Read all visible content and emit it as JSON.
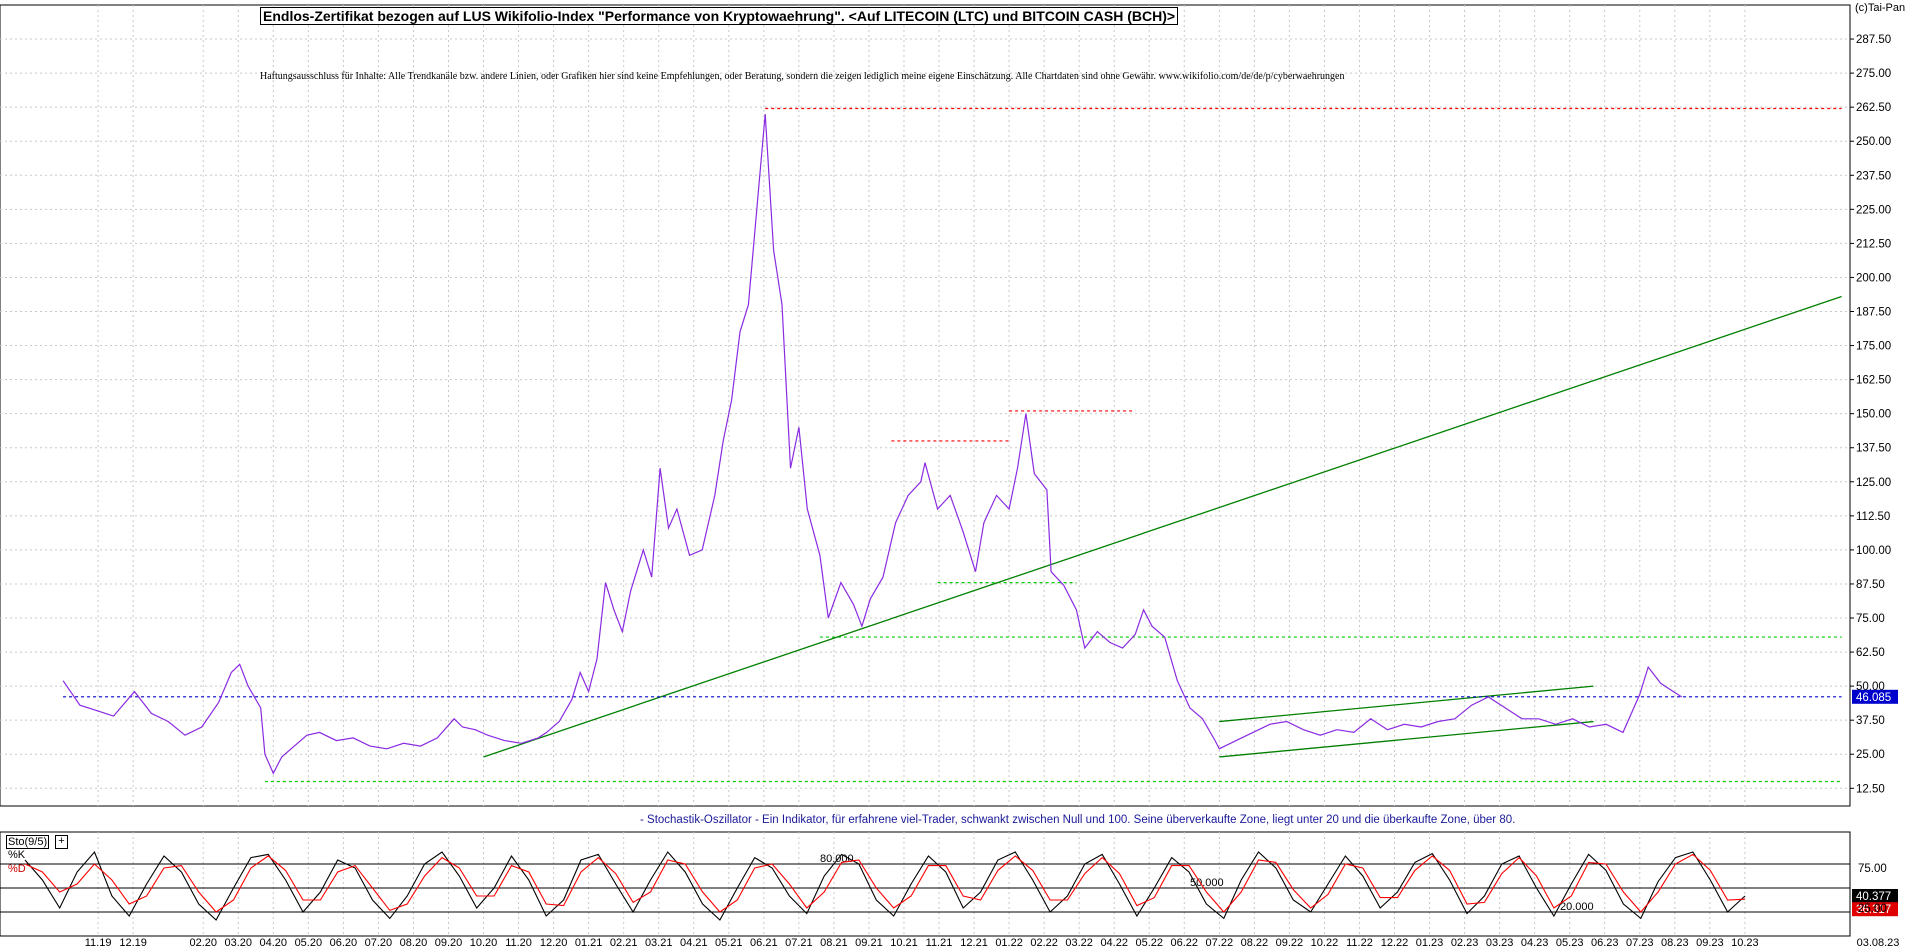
{
  "header": {
    "title": "Endlos-Zertifikat bezogen auf LUS Wikifolio-Index \"Performance von Kryptowaehrung\". <Auf LITECOIN (LTC) und BITCOIN CASH (BCH)>",
    "disclaimer": "Haftungsausschluss für Inhalte: Alle Trendkanäle bzw. andere Linien, oder Grafiken hier sind keine Empfehlungen, oder Beratung, sondern die zeigen lediglich meine eigene Einschätzung. Alle Chartdaten sind ohne Gewähr. www.wikifolio.com/de/de/p/cyberwaehrungen",
    "copyright": "(c)Tai-Pan"
  },
  "oscillator": {
    "label": "Sto(9/5)",
    "k_label": "%K",
    "d_label": "%D",
    "note": "- Stochastik-Oszillator - Ein Indikator, für erfahrene viel-Trader, schwankt zwischen Null und 100. Seine überverkaufte Zone, liegt unter 20 und die überkaufte Zone, über 80.",
    "level_labels": [
      "80.000",
      "50.000",
      "20.000"
    ],
    "k_value": "40.377",
    "d_value": "36.317"
  },
  "colors": {
    "price": "#8a2be2",
    "trend": "#008000",
    "resistance": "#ff0000",
    "support": "#00cc00",
    "current": "#0000cc",
    "k_line": "#000000",
    "d_line": "#ff0000"
  },
  "chart_data": [
    {
      "type": "line",
      "x_axis": {
        "tick_labels": [
          "11.19",
          "12.19",
          "02.20",
          "03.20",
          "04.20",
          "05.20",
          "06.20",
          "07.20",
          "08.20",
          "09.20",
          "10.20",
          "11.20",
          "12.20",
          "01.21",
          "02.21",
          "03.21",
          "04.21",
          "05.21",
          "06.21",
          "07.21",
          "08.21",
          "09.21",
          "10.21",
          "11.21",
          "12.21",
          "01.22",
          "02.22",
          "03.22",
          "04.22",
          "05.22",
          "06.22",
          "07.22",
          "08.22",
          "09.22",
          "10.22",
          "11.22",
          "12.22",
          "01.23",
          "02.23",
          "03.23",
          "04.23",
          "05.23",
          "06.23",
          "07.23",
          "08.23",
          "09.23",
          "10.23",
          "03.08.23"
        ],
        "range": [
          "2019-10",
          "2023-12"
        ]
      },
      "y_axis": {
        "tick_labels": [
          "12.50",
          "25.00",
          "37.50",
          "50.00",
          "62.50",
          "75.00",
          "87.50",
          "100.00",
          "112.50",
          "125.00",
          "137.50",
          "150.00",
          "162.50",
          "175.00",
          "187.50",
          "200.00",
          "212.50",
          "225.00",
          "237.50",
          "250.00",
          "262.50",
          "275.00",
          "287.50"
        ],
        "ylim": [
          6,
          300
        ]
      },
      "grid": true,
      "current_value_label": "46.085",
      "current_value": 46.085,
      "series": [
        {
          "points": [
            [
              2019.75,
              52
            ],
            [
              2019.79,
              43
            ],
            [
              2019.83,
              41
            ],
            [
              2019.87,
              39
            ],
            [
              2019.92,
              48
            ],
            [
              2019.96,
              40
            ],
            [
              2020.0,
              37
            ],
            [
              2020.04,
              32
            ],
            [
              2020.08,
              35
            ],
            [
              2020.12,
              44
            ],
            [
              2020.15,
              55
            ],
            [
              2020.17,
              58
            ],
            [
              2020.19,
              50
            ],
            [
              2020.22,
              42
            ],
            [
              2020.23,
              25
            ],
            [
              2020.25,
              18
            ],
            [
              2020.27,
              24
            ],
            [
              2020.3,
              28
            ],
            [
              2020.33,
              32
            ],
            [
              2020.36,
              33
            ],
            [
              2020.4,
              30
            ],
            [
              2020.44,
              31
            ],
            [
              2020.48,
              28
            ],
            [
              2020.52,
              27
            ],
            [
              2020.56,
              29
            ],
            [
              2020.6,
              28
            ],
            [
              2020.64,
              31
            ],
            [
              2020.68,
              38
            ],
            [
              2020.7,
              35
            ],
            [
              2020.73,
              34
            ],
            [
              2020.76,
              32
            ],
            [
              2020.8,
              30
            ],
            [
              2020.84,
              29
            ],
            [
              2020.88,
              31
            ],
            [
              2020.9,
              33
            ],
            [
              2020.93,
              37
            ],
            [
              2020.96,
              45
            ],
            [
              2020.98,
              55
            ],
            [
              2021.0,
              48
            ],
            [
              2021.02,
              60
            ],
            [
              2021.04,
              88
            ],
            [
              2021.06,
              78
            ],
            [
              2021.08,
              70
            ],
            [
              2021.1,
              85
            ],
            [
              2021.13,
              100
            ],
            [
              2021.15,
              90
            ],
            [
              2021.17,
              130
            ],
            [
              2021.19,
              108
            ],
            [
              2021.21,
              115
            ],
            [
              2021.24,
              98
            ],
            [
              2021.27,
              100
            ],
            [
              2021.3,
              120
            ],
            [
              2021.32,
              140
            ],
            [
              2021.34,
              155
            ],
            [
              2021.36,
              180
            ],
            [
              2021.38,
              190
            ],
            [
              2021.4,
              225
            ],
            [
              2021.42,
              260
            ],
            [
              2021.44,
              210
            ],
            [
              2021.46,
              190
            ],
            [
              2021.48,
              130
            ],
            [
              2021.5,
              145
            ],
            [
              2021.52,
              115
            ],
            [
              2021.55,
              98
            ],
            [
              2021.57,
              75
            ],
            [
              2021.6,
              88
            ],
            [
              2021.63,
              80
            ],
            [
              2021.65,
              72
            ],
            [
              2021.67,
              82
            ],
            [
              2021.7,
              90
            ],
            [
              2021.73,
              110
            ],
            [
              2021.76,
              120
            ],
            [
              2021.79,
              125
            ],
            [
              2021.8,
              132
            ],
            [
              2021.83,
              115
            ],
            [
              2021.86,
              120
            ],
            [
              2021.89,
              107
            ],
            [
              2021.92,
              92
            ],
            [
              2021.94,
              110
            ],
            [
              2021.97,
              120
            ],
            [
              2022.0,
              115
            ],
            [
              2022.02,
              130
            ],
            [
              2022.04,
              150
            ],
            [
              2022.06,
              128
            ],
            [
              2022.09,
              122
            ],
            [
              2022.1,
              92
            ],
            [
              2022.13,
              87
            ],
            [
              2022.16,
              78
            ],
            [
              2022.18,
              64
            ],
            [
              2022.21,
              70
            ],
            [
              2022.24,
              66
            ],
            [
              2022.27,
              64
            ],
            [
              2022.3,
              69
            ],
            [
              2022.32,
              78
            ],
            [
              2022.34,
              72
            ],
            [
              2022.37,
              68
            ],
            [
              2022.4,
              52
            ],
            [
              2022.43,
              42
            ],
            [
              2022.46,
              38
            ],
            [
              2022.49,
              30
            ],
            [
              2022.5,
              27
            ],
            [
              2022.54,
              30
            ],
            [
              2022.58,
              33
            ],
            [
              2022.62,
              36
            ],
            [
              2022.66,
              37
            ],
            [
              2022.7,
              34
            ],
            [
              2022.74,
              32
            ],
            [
              2022.78,
              34
            ],
            [
              2022.82,
              33
            ],
            [
              2022.86,
              38
            ],
            [
              2022.9,
              34
            ],
            [
              2022.94,
              36
            ],
            [
              2022.98,
              35
            ],
            [
              2023.02,
              37
            ],
            [
              2023.06,
              38
            ],
            [
              2023.1,
              43
            ],
            [
              2023.14,
              46
            ],
            [
              2023.18,
              42
            ],
            [
              2023.22,
              38
            ],
            [
              2023.26,
              38
            ],
            [
              2023.3,
              36
            ],
            [
              2023.34,
              38
            ],
            [
              2023.38,
              35
            ],
            [
              2023.42,
              36
            ],
            [
              2023.46,
              33
            ],
            [
              2023.5,
              47
            ],
            [
              2023.52,
              57
            ],
            [
              2023.55,
              51
            ],
            [
              2023.58,
              48
            ],
            [
              2023.6,
              46
            ]
          ]
        }
      ],
      "annotations": [
        {
          "kind": "resistance",
          "y": 262,
          "x": [
            2021.42,
            2023.98
          ]
        },
        {
          "kind": "resistance",
          "y": 140,
          "x": [
            2021.72,
            2022.0
          ]
        },
        {
          "kind": "resistance",
          "y": 151,
          "x": [
            2022.0,
            2022.3
          ]
        },
        {
          "kind": "support",
          "y": 88,
          "x": [
            2021.83,
            2022.16
          ]
        },
        {
          "kind": "support",
          "y": 68,
          "x": [
            2021.55,
            2023.98
          ]
        },
        {
          "kind": "support",
          "y": 15,
          "x": [
            2020.23,
            2023.98
          ]
        },
        {
          "kind": "trend",
          "from": [
            2020.75,
            24
          ],
          "to": [
            2023.98,
            193
          ]
        },
        {
          "kind": "trend",
          "from": [
            2022.5,
            37
          ],
          "to": [
            2023.39,
            50
          ]
        },
        {
          "kind": "trend",
          "from": [
            2022.5,
            24
          ],
          "to": [
            2023.39,
            37
          ]
        },
        {
          "kind": "current",
          "y": 46.085,
          "x": [
            2019.75,
            2023.98
          ]
        }
      ]
    },
    {
      "type": "line",
      "ylim": [
        0,
        100
      ],
      "levels": [
        80,
        50,
        20
      ],
      "series": [
        {
          "name": "%K",
          "values": [
            85,
            60,
            25,
            70,
            95,
            40,
            15,
            55,
            90,
            70,
            30,
            10,
            50,
            88,
            92,
            60,
            20,
            45,
            85,
            75,
            35,
            12,
            40,
            80,
            95,
            65,
            25,
            50,
            90,
            60,
            15,
            35,
            85,
            92,
            55,
            20,
            60,
            95,
            70,
            30,
            10,
            50,
            88,
            75,
            40,
            18,
            65,
            92,
            80,
            35,
            15,
            55,
            90,
            70,
            25,
            45,
            85,
            95,
            60,
            20,
            40,
            80,
            92,
            55,
            15,
            50,
            88,
            70,
            30,
            12,
            60,
            95,
            75,
            35,
            20,
            55,
            90,
            65,
            25,
            45,
            82,
            93,
            60,
            18,
            40,
            80,
            90,
            50,
            15,
            55,
            92,
            72,
            30,
            12,
            58,
            88,
            95,
            60,
            20,
            40
          ]
        },
        {
          "name": "%D",
          "values": [
            80,
            70,
            45,
            55,
            80,
            60,
            30,
            40,
            75,
            78,
            45,
            20,
            35,
            75,
            90,
            72,
            35,
            35,
            70,
            78,
            50,
            22,
            30,
            65,
            88,
            75,
            40,
            40,
            78,
            70,
            30,
            28,
            70,
            88,
            68,
            32,
            45,
            85,
            80,
            45,
            20,
            35,
            75,
            80,
            55,
            25,
            45,
            82,
            85,
            50,
            25,
            40,
            78,
            78,
            40,
            35,
            72,
            90,
            72,
            35,
            35,
            68,
            88,
            68,
            28,
            38,
            78,
            78,
            45,
            20,
            45,
            85,
            82,
            48,
            25,
            42,
            80,
            75,
            38,
            38,
            72,
            90,
            72,
            30,
            32,
            68,
            88,
            65,
            25,
            40,
            82,
            80,
            45,
            20,
            45,
            80,
            92,
            72,
            35,
            36
          ]
        }
      ]
    }
  ]
}
